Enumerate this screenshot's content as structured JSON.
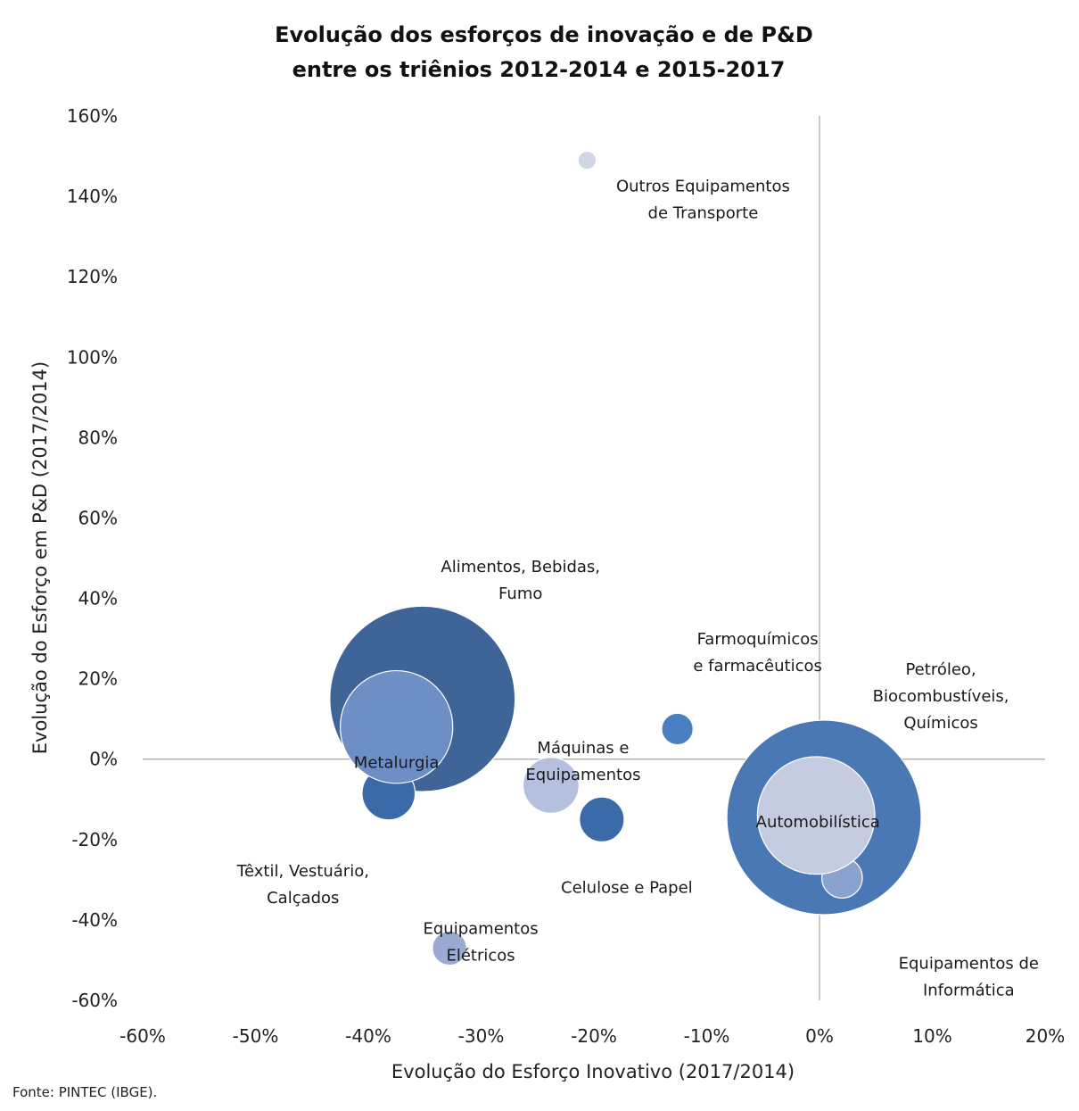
{
  "chart_data": {
    "type": "scatter",
    "title": [
      "Evolução dos esforços de inovação e de P&D",
      "entre os triênios 2012-2014 e 2015-2017"
    ],
    "xlabel": "Evolução do Esforço Inovativo (2017/2014)",
    "ylabel": "Evolução do Esforço em P&D (2017/2014)",
    "source": "Fonte: PINTEC (IBGE).",
    "xlim": [
      -60,
      20
    ],
    "ylim": [
      -60,
      160
    ],
    "x_ticks": [
      "-60%",
      "-50%",
      "-40%",
      "-30%",
      "-20%",
      "-10%",
      "0%",
      "10%",
      "20%"
    ],
    "y_ticks": [
      "160%",
      "140%",
      "120%",
      "100%",
      "80%",
      "60%",
      "40%",
      "20%",
      "0%",
      "-20%",
      "-40%",
      "-60%"
    ],
    "grid": false,
    "quadrant_lines": true,
    "series": [
      {
        "label": [
          "Outros Equipamentos",
          "de Transporte"
        ],
        "x": -20.6,
        "y": 149,
        "size": 2.6,
        "color": "#d0d6e8"
      },
      {
        "label": [
          "Alimentos, Bebidas,",
          "Fumo"
        ],
        "x": -35.2,
        "y": 15,
        "size": 26.5,
        "color": "#3f6497"
      },
      {
        "label": [
          "Têxtil, Vestuário,",
          "Calçados"
        ],
        "x": -38.2,
        "y": -8.5,
        "size": 7.6,
        "color": "#3a6aa8"
      },
      {
        "label": [
          "Metalurgia"
        ],
        "x": -37.5,
        "y": 8,
        "size": 16.1,
        "color": "#6e8fc5"
      },
      {
        "label": [
          "Máquinas e",
          "Equipamentos"
        ],
        "x": -23.8,
        "y": -6.5,
        "size": 8.0,
        "color": "#b5c0de"
      },
      {
        "label": [
          "Celulose e Papel"
        ],
        "x": -19.3,
        "y": -15,
        "size": 6.4,
        "color": "#3a6aa8"
      },
      {
        "label": [
          "Farmoquímicos",
          "e farmacêuticos"
        ],
        "x": -12.6,
        "y": 7.5,
        "size": 4.5,
        "color": "#4a7ec0"
      },
      {
        "label": [
          "Petróleo,",
          "Biocombustíveis,",
          "Químicos"
        ],
        "x": 0.4,
        "y": -14.5,
        "size": 27.8,
        "color": "#4a78b4"
      },
      {
        "label": [
          "Equipamentos de",
          "Informática"
        ],
        "x": 2.0,
        "y": -29.5,
        "size": 5.8,
        "color": "#8aa2d0"
      },
      {
        "label": [
          "Automobilística"
        ],
        "x": -0.3,
        "y": -14,
        "size": 16.8,
        "color": "#c5cce2"
      },
      {
        "label": [
          "Equipamentos",
          "Elétricos"
        ],
        "x": -32.8,
        "y": -47,
        "size": 4.9,
        "color": "#9aaad2"
      }
    ]
  }
}
